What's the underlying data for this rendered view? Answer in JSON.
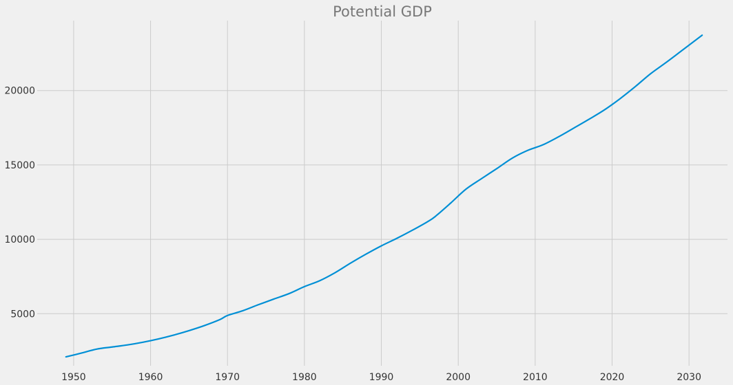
{
  "chart_data": {
    "type": "line",
    "title": "Potential GDP",
    "xlabel": "",
    "ylabel": "",
    "xlim": [
      1945.8,
      2035.0
    ],
    "ylim": [
      1500,
      24700
    ],
    "xticks": [
      1950,
      1960,
      1970,
      1980,
      1990,
      2000,
      2010,
      2020,
      2030
    ],
    "yticks": [
      5000,
      10000,
      15000,
      20000
    ],
    "grid": true,
    "colors": {
      "background": "#f0f0f0",
      "grid": "#cbcbcb",
      "line": "#008fd5",
      "title": "#777777",
      "ticks": "#333333"
    },
    "series": [
      {
        "color": "#008fd5",
        "x": [
          1949,
          1951,
          1953,
          1955,
          1957,
          1959,
          1961,
          1963,
          1965,
          1967,
          1969,
          1970,
          1972,
          1974,
          1976,
          1978,
          1980,
          1982,
          1984,
          1986,
          1988,
          1990,
          1992,
          1994,
          1996,
          1997,
          1999,
          2001,
          2003,
          2005,
          2007,
          2009,
          2011,
          2013,
          2015,
          2017,
          2019,
          2021,
          2023,
          2025,
          2027,
          2029,
          2031.7
        ],
        "y": [
          2100,
          2350,
          2620,
          2760,
          2900,
          3080,
          3300,
          3560,
          3860,
          4200,
          4600,
          4880,
          5200,
          5600,
          5980,
          6350,
          6820,
          7220,
          7760,
          8400,
          9000,
          9560,
          10060,
          10600,
          11180,
          11530,
          12430,
          13370,
          14070,
          14750,
          15450,
          15970,
          16350,
          16880,
          17470,
          18070,
          18700,
          19440,
          20260,
          21130,
          21880,
          22660,
          23720
        ]
      }
    ]
  }
}
